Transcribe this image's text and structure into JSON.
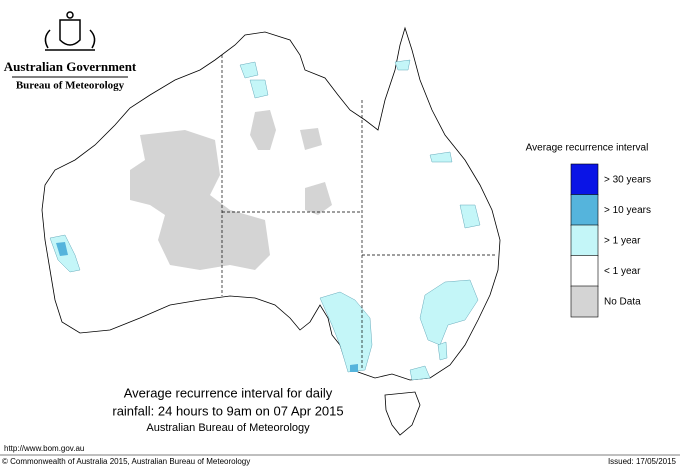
{
  "header": {
    "title": "Australian Government",
    "subtitle": "Bureau of Meteorology"
  },
  "legend": {
    "title": "Average recurrence interval",
    "items": [
      {
        "label": "> 30 years",
        "color": "#0a14e6"
      },
      {
        "label": "> 10 years",
        "color": "#55b4dc"
      },
      {
        "label": "> 1 year",
        "color": "#c4f6f8"
      },
      {
        "label": "< 1 year",
        "color": "#ffffff"
      },
      {
        "label": "No Data",
        "color": "#d4d4d4"
      }
    ]
  },
  "caption": {
    "lines": [
      "Average recurrence interval for daily",
      "rainfall: 24 hours to 9am on 07 Apr 2015"
    ],
    "source": "Australian Bureau of Meteorology"
  },
  "footer": {
    "url": "http://www.bom.gov.au",
    "copyright": "© Commonwealth of Australia 2015, Australian Bureau of Meteorology",
    "issued": "Issued: 17/05/2015"
  }
}
